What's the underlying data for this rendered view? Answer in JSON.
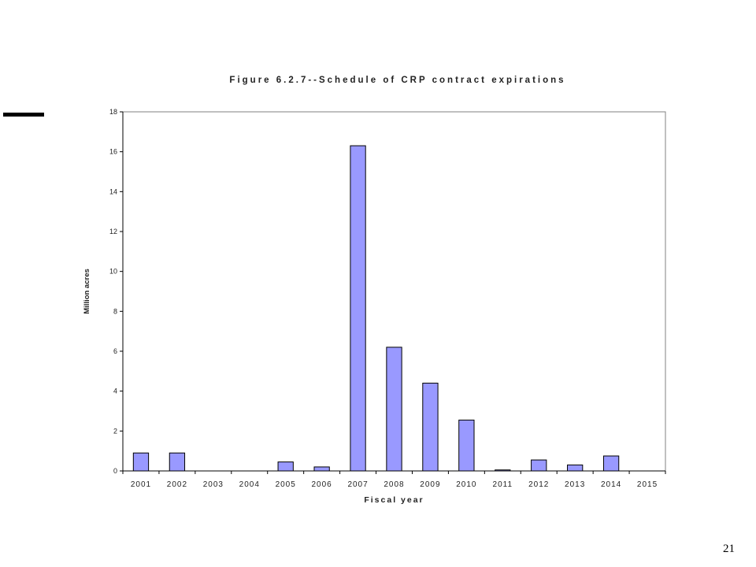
{
  "page": {
    "number": "21"
  },
  "colors": {
    "bar_fill": "#9999ff",
    "bar_stroke": "#000000",
    "frame": "#808080",
    "deco_bar": "#000000"
  },
  "chart_data": {
    "type": "bar",
    "title": "Figure 6.2.7--Schedule of CRP contract expirations",
    "xlabel": "Fiscal year",
    "ylabel": "Million acres",
    "categories": [
      "2001",
      "2002",
      "2003",
      "2004",
      "2005",
      "2006",
      "2007",
      "2008",
      "2009",
      "2010",
      "2011",
      "2012",
      "2013",
      "2014",
      "2015"
    ],
    "values": [
      0.9,
      0.9,
      0,
      0,
      0.45,
      0.2,
      16.3,
      6.2,
      4.4,
      2.55,
      0.05,
      0.55,
      0.3,
      0.75,
      0
    ],
    "ylim": [
      0,
      18
    ],
    "yticks": [
      0,
      2,
      4,
      6,
      8,
      10,
      12,
      14,
      16,
      18
    ],
    "grid": false,
    "legend": "none"
  }
}
